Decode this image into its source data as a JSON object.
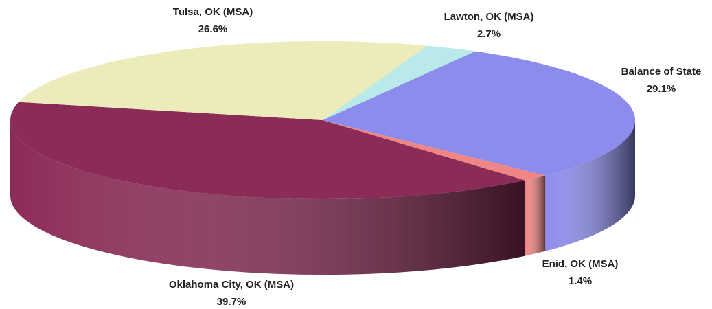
{
  "chart_data": {
    "type": "pie",
    "categories": [
      "Lawton, OK (MSA)",
      "Balance of State",
      "Enid, OK (MSA)",
      "Oklahoma City, OK (MSA)",
      "Tulsa, OK (MSA)"
    ],
    "values": [
      2.7,
      29.1,
      1.4,
      39.7,
      26.6
    ],
    "value_labels": [
      "2.7%",
      "29.1%",
      "1.4%",
      "39.7%",
      "26.6%"
    ],
    "colors": [
      "#b9e9e9",
      "#8c8cec",
      "#ef8585",
      "#8b2b57",
      "#ececbb"
    ]
  }
}
